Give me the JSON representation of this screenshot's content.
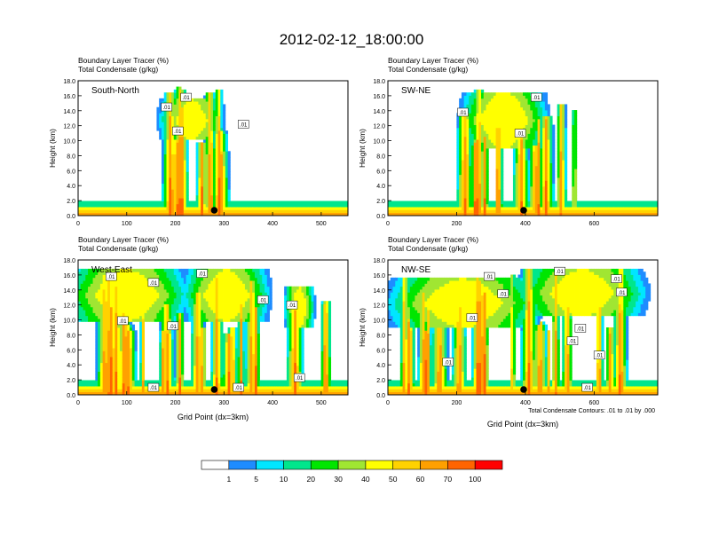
{
  "figure": {
    "main_title": "2012-02-12_18:00:00",
    "footnote": "Total Condensate Contours: .01 to .01 by .000"
  },
  "colorbar": {
    "colors": [
      "#ffffff",
      "#1e8cff",
      "#00e6ff",
      "#00e68c",
      "#00e600",
      "#a0e632",
      "#ffff00",
      "#ffd200",
      "#ffa000",
      "#ff6400",
      "#ff0000"
    ],
    "labels": [
      "1",
      "5",
      "10",
      "20",
      "30",
      "40",
      "50",
      "60",
      "70",
      "100"
    ]
  },
  "chart_data": [
    {
      "type": "heatmap",
      "panel_label": "South-North",
      "title_line1": "Boundary Layer Tracer   (%)",
      "title_line2": "Total Condensate   (g/kg)",
      "ylabel": "Height (km)",
      "xlabel": "",
      "xlim": [
        0,
        555
      ],
      "ylim": [
        0,
        18
      ],
      "xticks": [
        "0",
        "100",
        "200",
        "300",
        "400",
        "500"
      ],
      "yticks": [
        "0.0",
        "2.0",
        "4.0",
        "6.0",
        "8.0",
        "10.0",
        "12.0",
        "14.0",
        "16.0",
        "18.0"
      ],
      "marker_x": 280,
      "contour_labels": [
        {
          "x": 182,
          "y": 14.5,
          "text": ".01"
        },
        {
          "x": 222,
          "y": 15.8,
          "text": ".01"
        },
        {
          "x": 205,
          "y": 11.3,
          "text": ".01"
        },
        {
          "x": 340,
          "y": 12.2,
          "text": ".01"
        }
      ]
    },
    {
      "type": "heatmap",
      "panel_label": "SW-NE",
      "title_line1": "Boundary Layer Tracer   (%)",
      "title_line2": "Total Condensate   (g/kg)",
      "ylabel": "Height (km)",
      "xlabel": "",
      "xlim": [
        0,
        785
      ],
      "ylim": [
        0,
        18
      ],
      "xticks": [
        "0",
        "200",
        "400",
        "600"
      ],
      "yticks": [
        "0.0",
        "2.0",
        "4.0",
        "6.0",
        "8.0",
        "10.0",
        "12.0",
        "14.0",
        "16.0",
        "18.0"
      ],
      "marker_x": 395,
      "contour_labels": [
        {
          "x": 432,
          "y": 15.8,
          "text": ".01"
        },
        {
          "x": 385,
          "y": 11.0,
          "text": ".01"
        },
        {
          "x": 218,
          "y": 13.8,
          "text": ".01"
        }
      ]
    },
    {
      "type": "heatmap",
      "panel_label": "West-East",
      "title_line1": "Boundary Layer Tracer   (%)",
      "title_line2": "Total Condensate   (g/kg)",
      "ylabel": "Height (km)",
      "xlabel": "Grid Point (dx=3km)",
      "xlim": [
        0,
        555
      ],
      "ylim": [
        0,
        18
      ],
      "xticks": [
        "0",
        "100",
        "200",
        "300",
        "400",
        "500"
      ],
      "yticks": [
        "0.0",
        "2.0",
        "4.0",
        "6.0",
        "8.0",
        "10.0",
        "12.0",
        "14.0",
        "16.0",
        "18.0"
      ],
      "marker_x": 280,
      "contour_labels": [
        {
          "x": 68,
          "y": 15.8,
          "text": ".01"
        },
        {
          "x": 155,
          "y": 15.0,
          "text": ".01"
        },
        {
          "x": 255,
          "y": 16.2,
          "text": ".01"
        },
        {
          "x": 380,
          "y": 12.7,
          "text": ".01"
        },
        {
          "x": 440,
          "y": 12.0,
          "text": ".01"
        },
        {
          "x": 92,
          "y": 9.9,
          "text": ".01"
        },
        {
          "x": 195,
          "y": 9.2,
          "text": ".01"
        },
        {
          "x": 155,
          "y": 1.0,
          "text": ".01"
        },
        {
          "x": 330,
          "y": 1.0,
          "text": ".01"
        },
        {
          "x": 455,
          "y": 2.3,
          "text": ".01"
        }
      ]
    },
    {
      "type": "heatmap",
      "panel_label": "NW-SE",
      "title_line1": "Boundary Layer Tracer   (%)",
      "title_line2": "Total Condensate   (g/kg)",
      "ylabel": "Height (km)",
      "xlabel": "Grid Point (dx=3km)",
      "xlim": [
        0,
        785
      ],
      "ylim": [
        0,
        18
      ],
      "xticks": [
        "0",
        "200",
        "400",
        "600"
      ],
      "yticks": [
        "0.0",
        "2.0",
        "4.0",
        "6.0",
        "8.0",
        "10.0",
        "12.0",
        "14.0",
        "16.0",
        "18.0"
      ],
      "marker_x": 395,
      "contour_labels": [
        {
          "x": 295,
          "y": 15.8,
          "text": ".01"
        },
        {
          "x": 500,
          "y": 16.5,
          "text": ".01"
        },
        {
          "x": 665,
          "y": 15.5,
          "text": ".01"
        },
        {
          "x": 335,
          "y": 13.5,
          "text": ".01"
        },
        {
          "x": 680,
          "y": 13.7,
          "text": ".01"
        },
        {
          "x": 245,
          "y": 10.3,
          "text": ".01"
        },
        {
          "x": 560,
          "y": 8.9,
          "text": ".01"
        },
        {
          "x": 537,
          "y": 7.2,
          "text": ".01"
        },
        {
          "x": 615,
          "y": 5.3,
          "text": ".01"
        },
        {
          "x": 175,
          "y": 4.4,
          "text": ".01"
        },
        {
          "x": 580,
          "y": 1.0,
          "text": ".01"
        }
      ]
    }
  ]
}
